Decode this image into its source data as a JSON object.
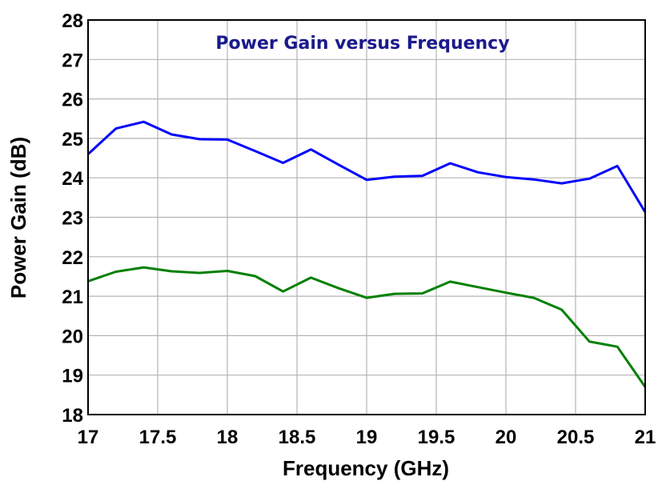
{
  "chart_data": {
    "type": "line",
    "title": "Power Gain versus Frequency",
    "xlabel": "Frequency (GHz)",
    "ylabel": "Power Gain (dB)",
    "xlim": [
      17,
      21
    ],
    "ylim": [
      18,
      28
    ],
    "xticks": [
      17,
      17.5,
      18,
      18.5,
      19,
      19.5,
      20,
      20.5,
      21
    ],
    "xtick_labels": [
      "17",
      "17.5",
      "18",
      "18.5",
      "19",
      "19.5",
      "20",
      "20.5",
      "21"
    ],
    "yticks": [
      18,
      19,
      20,
      21,
      22,
      23,
      24,
      25,
      26,
      27,
      28
    ],
    "ytick_labels": [
      "18",
      "19",
      "20",
      "21",
      "22",
      "23",
      "24",
      "25",
      "26",
      "27",
      "28"
    ],
    "grid": true,
    "x": [
      17.0,
      17.2,
      17.4,
      17.6,
      17.8,
      18.0,
      18.2,
      18.4,
      18.6,
      18.8,
      19.0,
      19.2,
      19.4,
      19.6,
      19.8,
      20.0,
      20.2,
      20.4,
      20.6,
      20.8,
      21.0
    ],
    "series": [
      {
        "name": "upper",
        "color": "#0000ff",
        "values": [
          24.6,
          25.25,
          25.42,
          25.1,
          24.98,
          24.97,
          24.68,
          24.38,
          24.72,
          24.33,
          23.95,
          24.03,
          24.05,
          24.37,
          24.14,
          24.02,
          23.96,
          23.86,
          23.98,
          24.3,
          23.13
        ]
      },
      {
        "name": "lower",
        "color": "#008000",
        "values": [
          21.38,
          21.62,
          21.73,
          21.63,
          21.59,
          21.64,
          21.51,
          21.12,
          21.47,
          21.2,
          20.96,
          21.06,
          21.07,
          21.37,
          21.23,
          21.09,
          20.96,
          20.66,
          19.85,
          19.72,
          18.7
        ]
      }
    ]
  },
  "colors": {
    "title": "#1a1a8c",
    "grid": "#b4b4b4",
    "frame": "#000000"
  }
}
